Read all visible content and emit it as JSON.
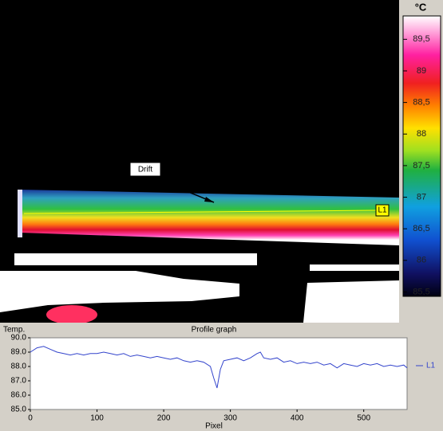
{
  "thermal_image": {
    "annotation": "Drift",
    "line_label": "L1"
  },
  "colorbar": {
    "title": "°C",
    "lim": [
      85.43,
      89.87
    ],
    "ticks": [
      {
        "value": 89.5,
        "label": "89,5"
      },
      89,
      {
        "value": 88.5,
        "label": "88,5"
      },
      88,
      {
        "value": 87.5,
        "label": "87,5"
      },
      87,
      {
        "value": 86.5,
        "label": "86,5"
      },
      86,
      {
        "value": 85.5,
        "label": "85,5"
      }
    ]
  },
  "chart_data": {
    "type": "line",
    "title": "Profile graph",
    "y_label": "Temp.",
    "x_label": "Pixel",
    "x": [
      0,
      10,
      20,
      30,
      40,
      50,
      60,
      70,
      80,
      90,
      100,
      110,
      120,
      130,
      140,
      150,
      160,
      170,
      180,
      190,
      200,
      210,
      220,
      230,
      240,
      250,
      260,
      270,
      275,
      280,
      285,
      290,
      300,
      310,
      320,
      330,
      340,
      345,
      350,
      360,
      370,
      380,
      390,
      400,
      410,
      420,
      430,
      440,
      450,
      460,
      470,
      480,
      490,
      500,
      510,
      520,
      530,
      540,
      550,
      560,
      565
    ],
    "series": [
      {
        "name": "L1",
        "color": "#3344cc",
        "values": [
          89.0,
          89.3,
          89.4,
          89.2,
          89.0,
          88.9,
          88.8,
          88.9,
          88.8,
          88.9,
          88.9,
          89.0,
          88.9,
          88.8,
          88.9,
          88.7,
          88.8,
          88.7,
          88.6,
          88.7,
          88.6,
          88.5,
          88.6,
          88.4,
          88.3,
          88.4,
          88.3,
          88.0,
          87.2,
          86.5,
          87.8,
          88.4,
          88.5,
          88.6,
          88.4,
          88.6,
          88.9,
          89.0,
          88.6,
          88.5,
          88.6,
          88.3,
          88.4,
          88.2,
          88.3,
          88.2,
          88.3,
          88.1,
          88.2,
          87.9,
          88.2,
          88.1,
          88.0,
          88.2,
          88.1,
          88.2,
          88.0,
          88.1,
          88.0,
          88.1,
          87.9
        ]
      }
    ],
    "xlim": [
      0,
      565
    ],
    "ylim": [
      85,
      90
    ],
    "xticks": [
      0,
      100,
      200,
      300,
      400,
      500
    ],
    "yticks": [
      {
        "value": 85,
        "label": "85.0"
      },
      {
        "value": 86,
        "label": "86.0"
      },
      {
        "value": 87,
        "label": "87.0"
      },
      {
        "value": 88,
        "label": "88.0"
      },
      {
        "value": 89,
        "label": "89.0"
      },
      {
        "value": 90,
        "label": "90.0"
      }
    ]
  }
}
